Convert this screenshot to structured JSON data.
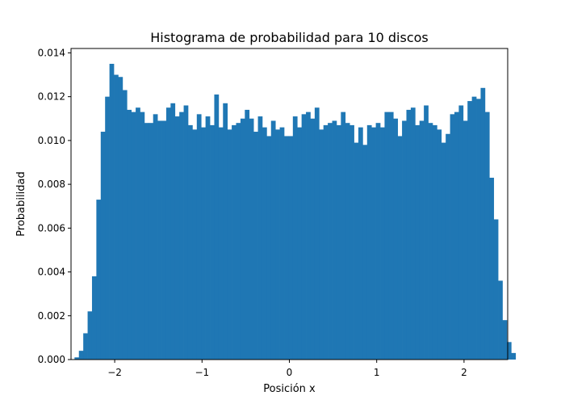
{
  "chart_data": {
    "type": "bar",
    "title": "Histograma de probabilidad para 10 discos",
    "xlabel": "Posición x",
    "ylabel": "Probabilidad",
    "xlim": [
      -2.5,
      2.5
    ],
    "ylim": [
      0,
      0.0142
    ],
    "bin_start": -2.46,
    "bin_width": 0.05,
    "x_ticks": [
      -2,
      -1,
      0,
      1,
      2
    ],
    "x_tick_labels": [
      "−2",
      "−1",
      "0",
      "1",
      "2"
    ],
    "y_ticks": [
      0,
      0.002,
      0.004,
      0.006,
      0.008,
      0.01,
      0.012,
      0.014
    ],
    "y_tick_labels": [
      "0.000",
      "0.002",
      "0.004",
      "0.006",
      "0.008",
      "0.010",
      "0.012",
      "0.014"
    ],
    "bar_color": "#1f77b4",
    "values": [
      0.0001,
      0.0004,
      0.0012,
      0.0022,
      0.0038,
      0.0073,
      0.0104,
      0.012,
      0.0135,
      0.013,
      0.0129,
      0.0123,
      0.0114,
      0.0113,
      0.0115,
      0.0113,
      0.0108,
      0.0108,
      0.0112,
      0.0109,
      0.0109,
      0.0115,
      0.0117,
      0.0111,
      0.0113,
      0.0116,
      0.0107,
      0.0105,
      0.0112,
      0.0106,
      0.0111,
      0.0107,
      0.0121,
      0.0106,
      0.0117,
      0.0105,
      0.0107,
      0.0108,
      0.011,
      0.0114,
      0.011,
      0.0104,
      0.0111,
      0.0106,
      0.0102,
      0.0109,
      0.0105,
      0.0106,
      0.0102,
      0.0102,
      0.0111,
      0.0106,
      0.0112,
      0.0113,
      0.011,
      0.0115,
      0.0105,
      0.0107,
      0.0108,
      0.0109,
      0.0107,
      0.0113,
      0.0108,
      0.0107,
      0.0099,
      0.0106,
      0.0098,
      0.0107,
      0.0106,
      0.0108,
      0.0106,
      0.0113,
      0.0113,
      0.011,
      0.0102,
      0.0109,
      0.0114,
      0.0115,
      0.0107,
      0.0109,
      0.0116,
      0.0108,
      0.0107,
      0.0105,
      0.0099,
      0.0103,
      0.0112,
      0.0113,
      0.0116,
      0.0109,
      0.0118,
      0.012,
      0.0119,
      0.0124,
      0.0113,
      0.0083,
      0.0064,
      0.0036,
      0.0018,
      0.0008,
      0.0003
    ]
  }
}
